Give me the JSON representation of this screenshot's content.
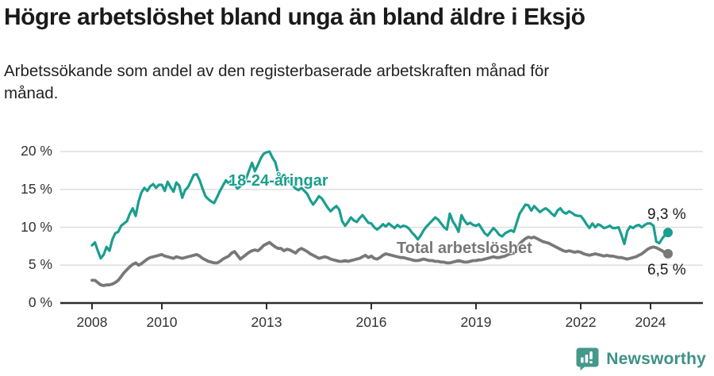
{
  "header": {
    "title": "Högre arbetslöshet bland unga än bland äldre i Eksjö",
    "subtitle": "Arbetssökande som andel av den registerbaserade arbetskraften månad för\nmånad."
  },
  "footer": {
    "brand": "Newsworthy"
  },
  "colors": {
    "young_line": "#1a9e8f",
    "total_line": "#787878",
    "grid": "#dedede",
    "axis": "#2e2e2e",
    "tick_text": "#333333",
    "end_label_text": "#1a1a1a",
    "brand_teal": "#3d9186"
  },
  "chart_data": {
    "type": "line",
    "title": "Högre arbetslöshet bland unga än bland äldre i Eksjö",
    "subtitle": "Arbetssökande som andel av den registerbaserade arbetskraften månad för månad.",
    "unit": "%",
    "frequency": "monthly",
    "x_start": "2008-01",
    "x_end": "2024-07",
    "x_tick_years": [
      2008,
      2010,
      2013,
      2016,
      2019,
      2022,
      2024
    ],
    "x_tick_labels": [
      "2008",
      "2010",
      "2013",
      "2016",
      "2019",
      "2022",
      "2024"
    ],
    "y_ticks": [
      0,
      5,
      10,
      15,
      20
    ],
    "y_tick_labels": [
      "0 %",
      "5 %",
      "10 %",
      "15 %",
      "20 %"
    ],
    "ylim": [
      0,
      20.5
    ],
    "grid": true,
    "series": [
      {
        "name": "18-24-åringar",
        "color": "#1a9e8f",
        "end_value": 9.3,
        "end_label": "9,3 %",
        "values": [
          7.6,
          8.0,
          6.9,
          5.9,
          6.4,
          7.4,
          6.9,
          8.4,
          9.2,
          9.4,
          10.2,
          10.5,
          10.8,
          11.8,
          12.5,
          11.5,
          13.4,
          14.6,
          15.2,
          14.8,
          15.4,
          15.7,
          15.2,
          15.6,
          15.6,
          14.8,
          16.0,
          15.3,
          14.7,
          15.9,
          15.5,
          13.9,
          14.9,
          15.3,
          16.1,
          16.9,
          17.0,
          16.2,
          15.1,
          14.1,
          13.7,
          13.4,
          13.2,
          14.0,
          14.8,
          15.5,
          16.2,
          15.8,
          16.2,
          15.6,
          15.1,
          15.4,
          15.9,
          16.4,
          17.5,
          18.5,
          17.4,
          18.2,
          19.1,
          19.7,
          19.9,
          20.0,
          19.2,
          18.6,
          17.1,
          16.5,
          16.9,
          16.3,
          15.9,
          15.5,
          15.1,
          14.9,
          15.2,
          14.8,
          14.4,
          13.6,
          13.0,
          13.5,
          14.1,
          13.8,
          13.2,
          12.6,
          12.1,
          12.5,
          12.8,
          12.3,
          10.8,
          10.2,
          10.7,
          11.3,
          10.9,
          10.7,
          11.2,
          11.6,
          11.1,
          10.6,
          10.5,
          10.0,
          9.7,
          10.0,
          10.4,
          10.1,
          10.5,
          10.2,
          9.9,
          10.3,
          10.0,
          10.2,
          10.1,
          9.8,
          9.3,
          8.9,
          8.4,
          8.9,
          9.6,
          10.1,
          10.5,
          10.9,
          11.3,
          11.0,
          10.5,
          10.0,
          9.7,
          11.8,
          10.8,
          10.2,
          9.4,
          11.6,
          10.9,
          10.4,
          10.6,
          10.3,
          10.2,
          10.4,
          9.8,
          9.2,
          8.9,
          9.4,
          9.9,
          9.5,
          9.0,
          8.8,
          9.2,
          9.4,
          9.6,
          9.4,
          10.6,
          11.8,
          12.4,
          13.0,
          12.9,
          12.2,
          12.8,
          12.4,
          12.0,
          12.3,
          12.5,
          12.2,
          11.8,
          11.5,
          12.2,
          12.5,
          12.0,
          11.8,
          12.1,
          11.9,
          11.6,
          11.5,
          11.5,
          11.0,
          10.4,
          9.9,
          10.5,
          10.0,
          10.4,
          10.2,
          9.9,
          10.0,
          10.2,
          9.9,
          9.9,
          10.0,
          9.0,
          7.8,
          9.5,
          10.1,
          9.9,
          10.2,
          10.3,
          10.0,
          10.3,
          10.5,
          10.5,
          10.2,
          8.1,
          7.9,
          8.5,
          9.0,
          9.3
        ]
      },
      {
        "name": "Total arbetslöshet",
        "color": "#787878",
        "end_value": 6.5,
        "end_label": "6,5 %",
        "values": [
          3.0,
          3.0,
          2.7,
          2.4,
          2.3,
          2.4,
          2.4,
          2.5,
          2.7,
          3.0,
          3.5,
          4.0,
          4.4,
          4.8,
          5.1,
          5.3,
          5.0,
          5.2,
          5.5,
          5.8,
          6.0,
          6.1,
          6.2,
          6.3,
          6.4,
          6.2,
          6.1,
          6.0,
          5.9,
          6.1,
          6.0,
          5.9,
          6.0,
          6.1,
          6.2,
          6.3,
          6.4,
          6.2,
          5.9,
          5.7,
          5.5,
          5.4,
          5.3,
          5.3,
          5.5,
          5.8,
          6.0,
          6.2,
          6.6,
          6.8,
          6.3,
          5.8,
          6.1,
          6.4,
          6.7,
          6.9,
          7.0,
          6.9,
          7.2,
          7.6,
          7.8,
          8.0,
          7.7,
          7.4,
          7.2,
          7.2,
          6.9,
          7.1,
          7.0,
          6.8,
          6.6,
          7.0,
          7.2,
          7.0,
          6.8,
          6.5,
          6.3,
          6.1,
          5.9,
          6.0,
          6.1,
          6.0,
          5.8,
          5.7,
          5.6,
          5.5,
          5.5,
          5.6,
          5.5,
          5.6,
          5.7,
          5.8,
          5.9,
          6.1,
          6.3,
          6.0,
          6.2,
          5.9,
          5.8,
          6.0,
          6.3,
          6.5,
          6.4,
          6.3,
          6.2,
          6.1,
          6.0,
          6.0,
          5.9,
          5.8,
          5.7,
          5.6,
          5.6,
          5.7,
          5.8,
          5.7,
          5.6,
          5.6,
          5.5,
          5.5,
          5.4,
          5.4,
          5.3,
          5.3,
          5.4,
          5.5,
          5.6,
          5.5,
          5.4,
          5.4,
          5.5,
          5.6,
          5.6,
          5.7,
          5.7,
          5.8,
          5.9,
          6.0,
          6.1,
          6.0,
          6.0,
          6.1,
          6.2,
          6.4,
          6.5,
          6.6,
          7.0,
          7.8,
          8.2,
          8.5,
          8.7,
          8.6,
          8.7,
          8.5,
          8.3,
          8.1,
          8.0,
          7.9,
          7.7,
          7.5,
          7.3,
          7.1,
          6.9,
          6.8,
          6.9,
          6.8,
          6.7,
          6.8,
          6.7,
          6.5,
          6.4,
          6.3,
          6.4,
          6.5,
          6.4,
          6.3,
          6.2,
          6.3,
          6.2,
          6.2,
          6.1,
          6.0,
          6.0,
          5.9,
          5.8,
          5.9,
          6.0,
          6.1,
          6.3,
          6.5,
          6.8,
          7.1,
          7.3,
          7.4,
          7.3,
          7.1,
          6.9,
          6.6,
          6.5
        ]
      }
    ],
    "annotations": [
      {
        "text": "18-24-åringar",
        "series": 0
      },
      {
        "text": "Total arbetslöshet",
        "series": 1
      },
      {
        "text": "9,3 %",
        "series": 0
      },
      {
        "text": "6,5 %",
        "series": 1
      }
    ],
    "legend_position": "inline-labels"
  }
}
